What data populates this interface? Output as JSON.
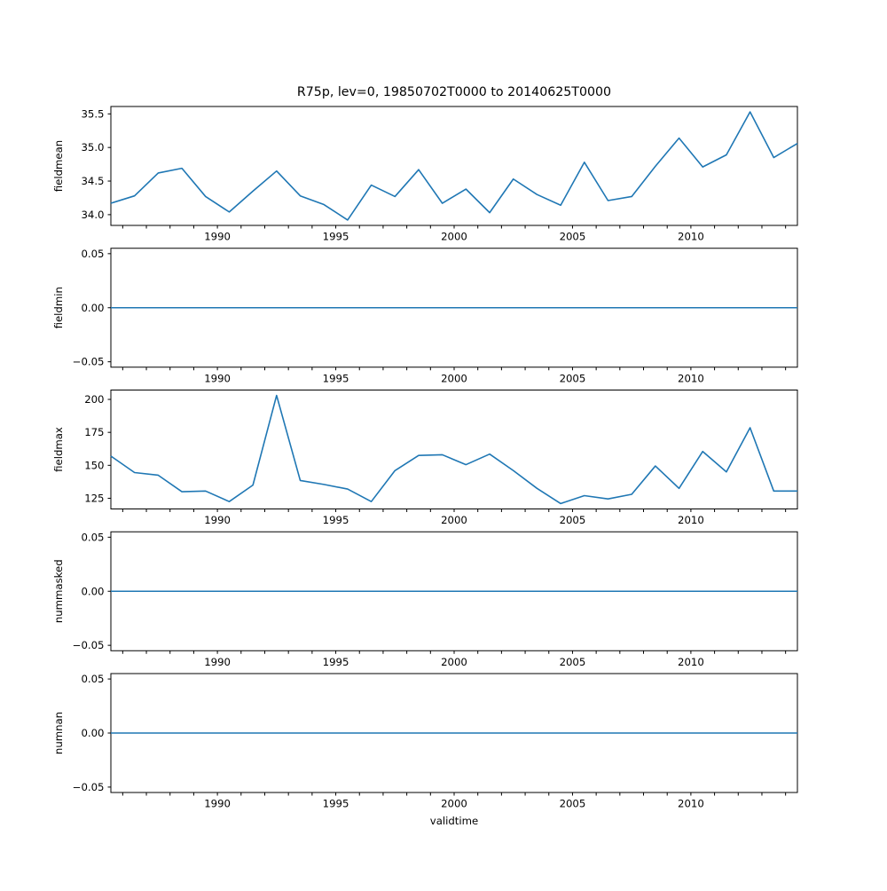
{
  "title": "R75p, lev=0, 19850702T0000 to 20140625T0000",
  "xlabel": "validtime",
  "colors": {
    "line": "#1f77b4",
    "axis": "#000000",
    "background": "#ffffff"
  },
  "x_axis": {
    "xlim": [
      1985.5,
      2014.5
    ],
    "x": [
      1985.5,
      1986.5,
      1987.5,
      1988.5,
      1989.5,
      1990.5,
      1991.5,
      1992.5,
      1993.5,
      1994.5,
      1995.5,
      1996.5,
      1997.5,
      1998.5,
      1999.5,
      2000.5,
      2001.5,
      2002.5,
      2003.5,
      2004.5,
      2005.5,
      2006.5,
      2007.5,
      2008.5,
      2009.5,
      2010.5,
      2011.5,
      2012.5,
      2013.5,
      2014.5
    ],
    "minor_tick_start": 1986,
    "minor_tick_end": 2014,
    "minor_tick_step": 1,
    "major_ticks": [
      1990,
      1995,
      2000,
      2005,
      2010
    ],
    "major_tick_labels": [
      "1990",
      "1995",
      "2000",
      "2005",
      "2010"
    ]
  },
  "chart_data": [
    {
      "type": "line",
      "name": "fieldmean",
      "ylabel": "fieldmean",
      "values": [
        34.17,
        34.28,
        34.62,
        34.69,
        34.27,
        34.04,
        34.35,
        34.65,
        34.28,
        34.15,
        33.92,
        34.44,
        34.27,
        34.67,
        34.17,
        34.38,
        34.03,
        34.53,
        34.3,
        34.14,
        34.78,
        34.21,
        34.27,
        34.72,
        35.14,
        34.71,
        34.89,
        35.53,
        34.85,
        35.06
      ],
      "ylim": [
        33.84,
        35.61
      ],
      "yticks": [
        34.0,
        34.5,
        35.0,
        35.5
      ],
      "ytick_labels": [
        "34.0",
        "34.5",
        "35.0",
        "35.5"
      ],
      "grid": false,
      "legend": null
    },
    {
      "type": "line",
      "name": "fieldmin",
      "ylabel": "fieldmin",
      "values": [
        0,
        0,
        0,
        0,
        0,
        0,
        0,
        0,
        0,
        0,
        0,
        0,
        0,
        0,
        0,
        0,
        0,
        0,
        0,
        0,
        0,
        0,
        0,
        0,
        0,
        0,
        0,
        0,
        0,
        0
      ],
      "ylim": [
        -0.055,
        0.055
      ],
      "yticks": [
        -0.05,
        0.0,
        0.05
      ],
      "ytick_labels": [
        "−0.05",
        "0.00",
        "0.05"
      ],
      "grid": false,
      "legend": null
    },
    {
      "type": "line",
      "name": "fieldmax",
      "ylabel": "fieldmax",
      "values": [
        157,
        144.5,
        142.5,
        130,
        130.5,
        122.5,
        135,
        203,
        138.5,
        135.5,
        132,
        122.5,
        146,
        157.5,
        158,
        150.5,
        158.5,
        146,
        132.5,
        121,
        127,
        124.5,
        128,
        149.5,
        132.5,
        160.5,
        145,
        178.5,
        130.5,
        130.5
      ],
      "ylim": [
        116.9,
        207.1
      ],
      "yticks": [
        125,
        150,
        175,
        200
      ],
      "ytick_labels": [
        "125",
        "150",
        "175",
        "200"
      ],
      "grid": false,
      "legend": null
    },
    {
      "type": "line",
      "name": "nummasked",
      "ylabel": "nummasked",
      "values": [
        0,
        0,
        0,
        0,
        0,
        0,
        0,
        0,
        0,
        0,
        0,
        0,
        0,
        0,
        0,
        0,
        0,
        0,
        0,
        0,
        0,
        0,
        0,
        0,
        0,
        0,
        0,
        0,
        0,
        0
      ],
      "ylim": [
        -0.055,
        0.055
      ],
      "yticks": [
        -0.05,
        0.0,
        0.05
      ],
      "ytick_labels": [
        "−0.05",
        "0.00",
        "0.05"
      ],
      "grid": false,
      "legend": null
    },
    {
      "type": "line",
      "name": "numnan",
      "ylabel": "numnan",
      "values": [
        0,
        0,
        0,
        0,
        0,
        0,
        0,
        0,
        0,
        0,
        0,
        0,
        0,
        0,
        0,
        0,
        0,
        0,
        0,
        0,
        0,
        0,
        0,
        0,
        0,
        0,
        0,
        0,
        0,
        0
      ],
      "ylim": [
        -0.055,
        0.055
      ],
      "yticks": [
        -0.05,
        0.0,
        0.05
      ],
      "ytick_labels": [
        "−0.05",
        "0.00",
        "0.05"
      ],
      "grid": false,
      "legend": null
    }
  ]
}
